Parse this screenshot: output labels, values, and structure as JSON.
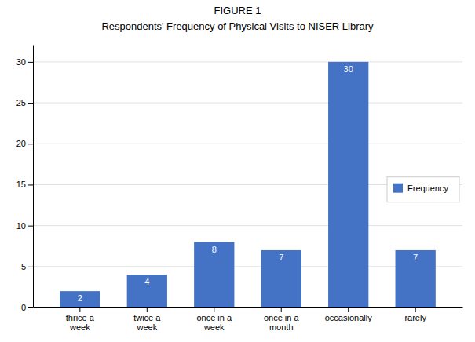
{
  "chart_data": {
    "type": "bar",
    "title": "FIGURE 1",
    "subtitle": "Respondents' Frequency of Physical Visits to NISER Library",
    "categories": [
      "thrice a\nweek",
      "twice a\nweek",
      "once in a\nweek",
      "once in a\nmonth",
      "occasionally",
      "rarely"
    ],
    "series": [
      {
        "name": "Frequency",
        "color": "#4472C4",
        "values": [
          2,
          4,
          8,
          7,
          30,
          7
        ]
      }
    ],
    "ylim": [
      0,
      32
    ],
    "yticks": [
      0,
      5,
      10,
      15,
      20,
      25,
      30
    ],
    "grid": true,
    "legend": "right",
    "data_labels": true
  }
}
